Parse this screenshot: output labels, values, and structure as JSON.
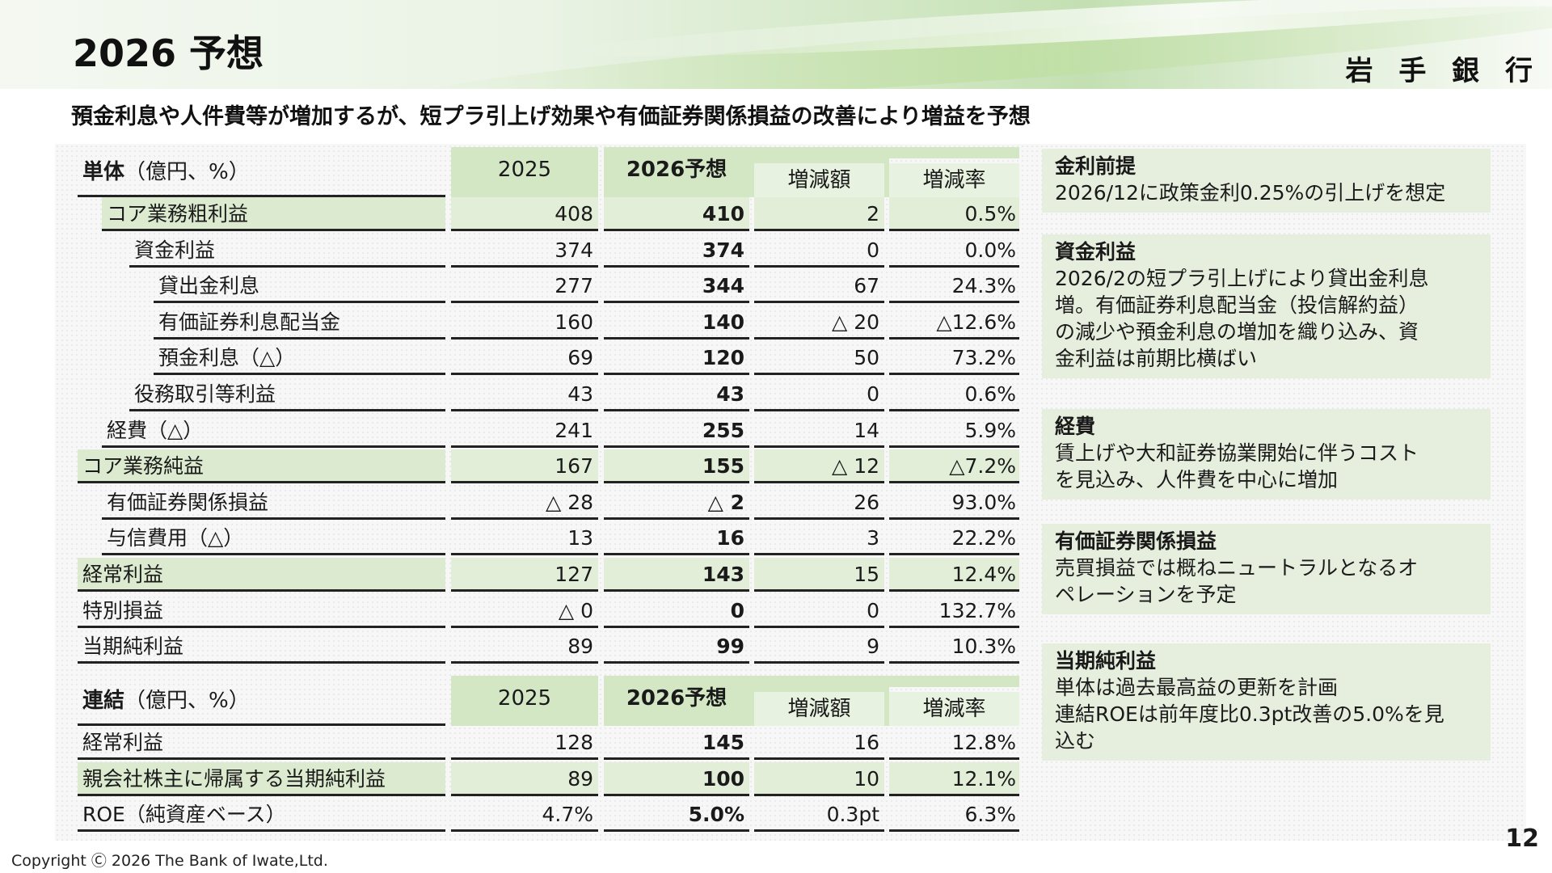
{
  "header": {
    "title": "2026 予想",
    "bank_name": "岩 手 銀 行"
  },
  "headline": "預金利息や人件費等が増加するが、短プラ引上げ効果や有価証券関係損益の改善により増益を予想",
  "single": {
    "label_bold": "単体",
    "label_unit": "（億円、%）",
    "col_2025": "2025",
    "col_2026": "2026予想",
    "col_diff": "増減額",
    "col_rate": "増減率",
    "rows": [
      {
        "label": "コア業務粗利益",
        "v2025": "408",
        "v2026": "410",
        "diff": "2",
        "rate": "0.5%"
      },
      {
        "label": "資金利益",
        "v2025": "374",
        "v2026": "374",
        "diff": "0",
        "rate": "0.0%"
      },
      {
        "label": "貸出金利息",
        "v2025": "277",
        "v2026": "344",
        "diff": "67",
        "rate": "24.3%"
      },
      {
        "label": "有価証券利息配当金",
        "v2025": "160",
        "v2026": "140",
        "diff": "△ 20",
        "rate": "△12.6%"
      },
      {
        "label": "預金利息（△）",
        "v2025": "69",
        "v2026": "120",
        "diff": "50",
        "rate": "73.2%"
      },
      {
        "label": "役務取引等利益",
        "v2025": "43",
        "v2026": "43",
        "diff": "0",
        "rate": "0.6%"
      },
      {
        "label": "経費（△）",
        "v2025": "241",
        "v2026": "255",
        "diff": "14",
        "rate": "5.9%"
      },
      {
        "label": "コア業務純益",
        "v2025": "167",
        "v2026": "155",
        "diff": "△ 12",
        "rate": "△7.2%"
      },
      {
        "label": "有価証券関係損益",
        "v2025": "△ 28",
        "v2026": "△ 2",
        "diff": "26",
        "rate": "93.0%"
      },
      {
        "label": "与信費用（△）",
        "v2025": "13",
        "v2026": "16",
        "diff": "3",
        "rate": "22.2%"
      },
      {
        "label": "経常利益",
        "v2025": "127",
        "v2026": "143",
        "diff": "15",
        "rate": "12.4%"
      },
      {
        "label": "特別損益",
        "v2025": "△ 0",
        "v2026": "0",
        "diff": "0",
        "rate": "132.7%"
      },
      {
        "label": "当期純利益",
        "v2025": "89",
        "v2026": "99",
        "diff": "9",
        "rate": "10.3%"
      }
    ]
  },
  "consolidated": {
    "label_bold": "連結",
    "label_unit": "（億円、%）",
    "col_2025": "2025",
    "col_2026": "2026予想",
    "col_diff": "増減額",
    "col_rate": "増減率",
    "rows": [
      {
        "label": "経常利益",
        "v2025": "128",
        "v2026": "145",
        "diff": "16",
        "rate": "12.8%"
      },
      {
        "label": "親会社株主に帰属する当期純利益",
        "v2025": "89",
        "v2026": "100",
        "diff": "10",
        "rate": "12.1%"
      },
      {
        "label": "ROE（純資産ベース）",
        "v2025": "4.7%",
        "v2026": "5.0%",
        "diff": "0.3pt",
        "rate": "6.3%"
      }
    ]
  },
  "notes": [
    {
      "title": "金利前提",
      "body": "2026/12に政策金利0.25%の引上げを想定"
    },
    {
      "title": "資金利益",
      "body": "2026/2の短プラ引上げにより貸出金利息\n増。有価証券利息配当金（投信解約益）\nの減少や預金利息の増加を織り込み、資\n金利益は前期比横ばい"
    },
    {
      "title": "経費",
      "body": "賃上げや大和証券協業開始に伴うコスト\nを見込み、人件費を中心に増加"
    },
    {
      "title": "有価証券関係損益",
      "body": "売買損益では概ねニュートラルとなるオ\nペレーションを予定"
    },
    {
      "title": "当期純利益",
      "body": "単体は過去最高益の更新を計画\n連結ROEは前年度比0.3pt改善の5.0%を見\n込む"
    }
  ],
  "footer": {
    "copyright": "Copyright Ⓒ 2026 The Bank of Iwate,Ltd.",
    "page_number": "12"
  }
}
